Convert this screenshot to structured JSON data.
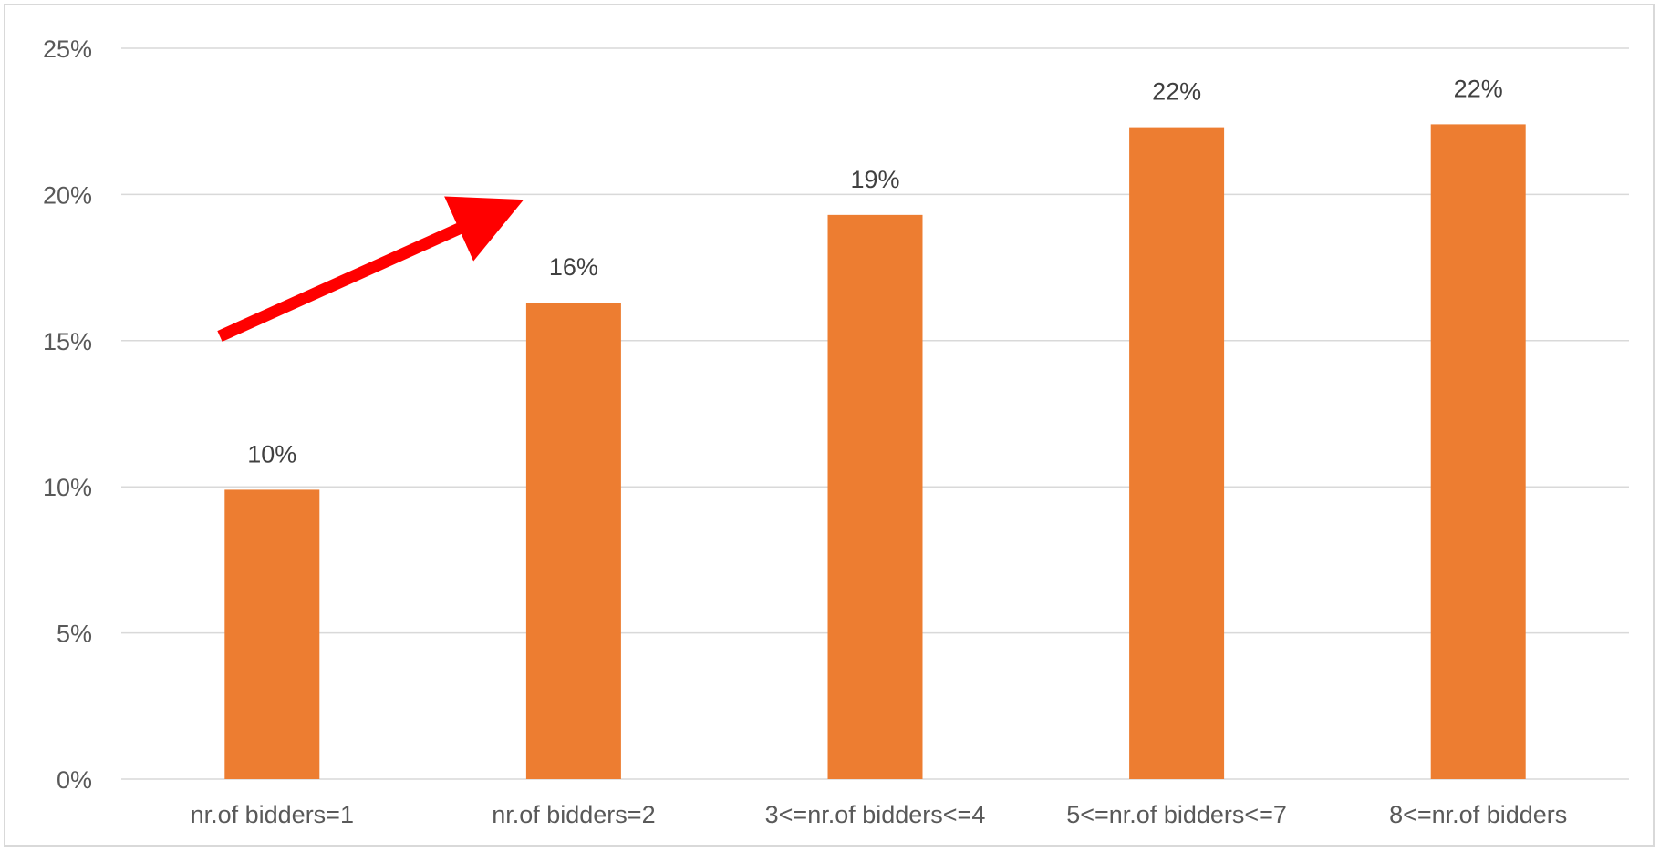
{
  "chart_data": {
    "type": "bar",
    "categories": [
      "nr.of bidders=1",
      "nr.of bidders=2",
      "3<=nr.of bidders<=4",
      "5<=nr.of bidders<=7",
      "8<=nr.of bidders"
    ],
    "values": [
      9.9,
      16.3,
      19.3,
      22.3,
      22.4
    ],
    "data_labels": [
      "10%",
      "16%",
      "19%",
      "22%",
      "22%"
    ],
    "title": "",
    "xlabel": "",
    "ylabel": "",
    "ylim": [
      0,
      25
    ],
    "yticks": [
      0,
      5,
      10,
      15,
      20,
      25
    ],
    "ytick_labels": [
      "0%",
      "5%",
      "10%",
      "15%",
      "20%",
      "25%"
    ],
    "grid": true,
    "legend": "none",
    "bar_color": "#ED7D31",
    "gridline_color": "#D9D9D9",
    "annotation": {
      "type": "arrow",
      "color": "#FF0000",
      "direction": "upward trend"
    }
  }
}
